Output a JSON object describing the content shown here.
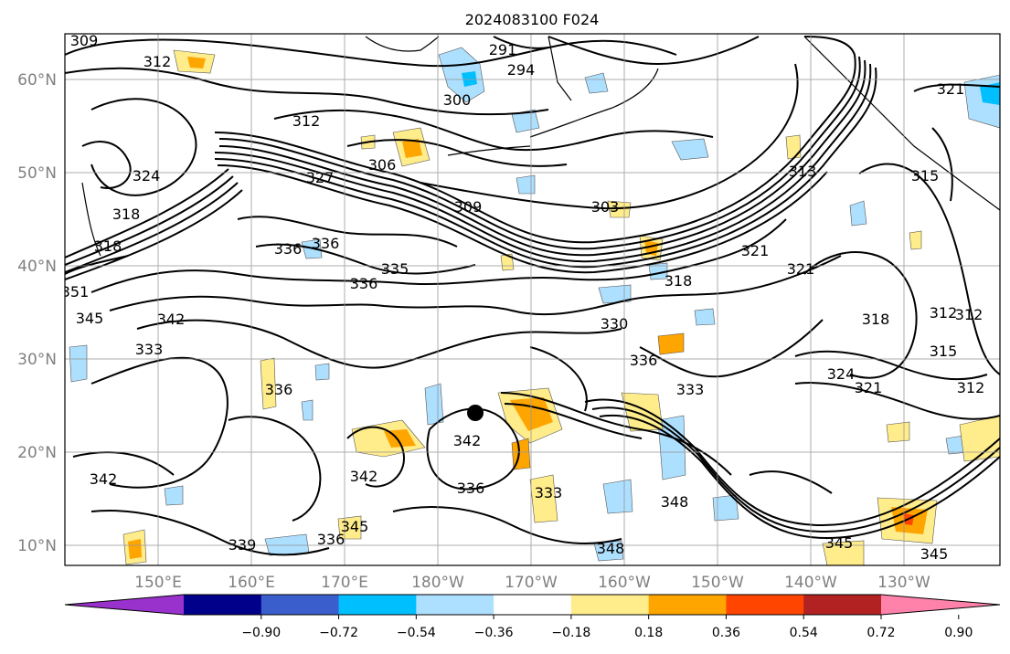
{
  "title": "2024083100 F024",
  "lat_labels": [
    "60°N",
    "50°N",
    "40°N",
    "30°N",
    "20°N",
    "10°N"
  ],
  "lon_labels": [
    "150°E",
    "160°E",
    "170°E",
    "180°W",
    "170°W",
    "160°W",
    "150°W",
    "140°W",
    "130°W"
  ],
  "colorbar": {
    "colors": [
      "#9932CC",
      "#00008B",
      "#3A5FCD",
      "#00BFFF",
      "#ADDFFF",
      "#FFFFFF",
      "#FFEC8B",
      "#FFA500",
      "#FF4500",
      "#B22222",
      "#FF82AB"
    ],
    "ticks": [
      "−0.90",
      "−0.72",
      "−0.54",
      "−0.36",
      "−0.18",
      "0.18",
      "0.36",
      "0.54",
      "0.72",
      "0.90"
    ]
  },
  "contour_labels": [
    "309",
    "312",
    "291",
    "294",
    "300",
    "321",
    "312",
    "324",
    "306",
    "327",
    "303",
    "309",
    "318",
    "313",
    "315",
    "318",
    "336",
    "336",
    "335",
    "336",
    "318",
    "321",
    "321",
    "351",
    "345",
    "342",
    "333",
    "336",
    "330",
    "336",
    "333",
    "324",
    "321",
    "318",
    "312",
    "315",
    "312",
    "345",
    "342",
    "342",
    "342",
    "336",
    "333",
    "348",
    "339",
    "336",
    "345",
    "348",
    "345",
    "312"
  ]
}
